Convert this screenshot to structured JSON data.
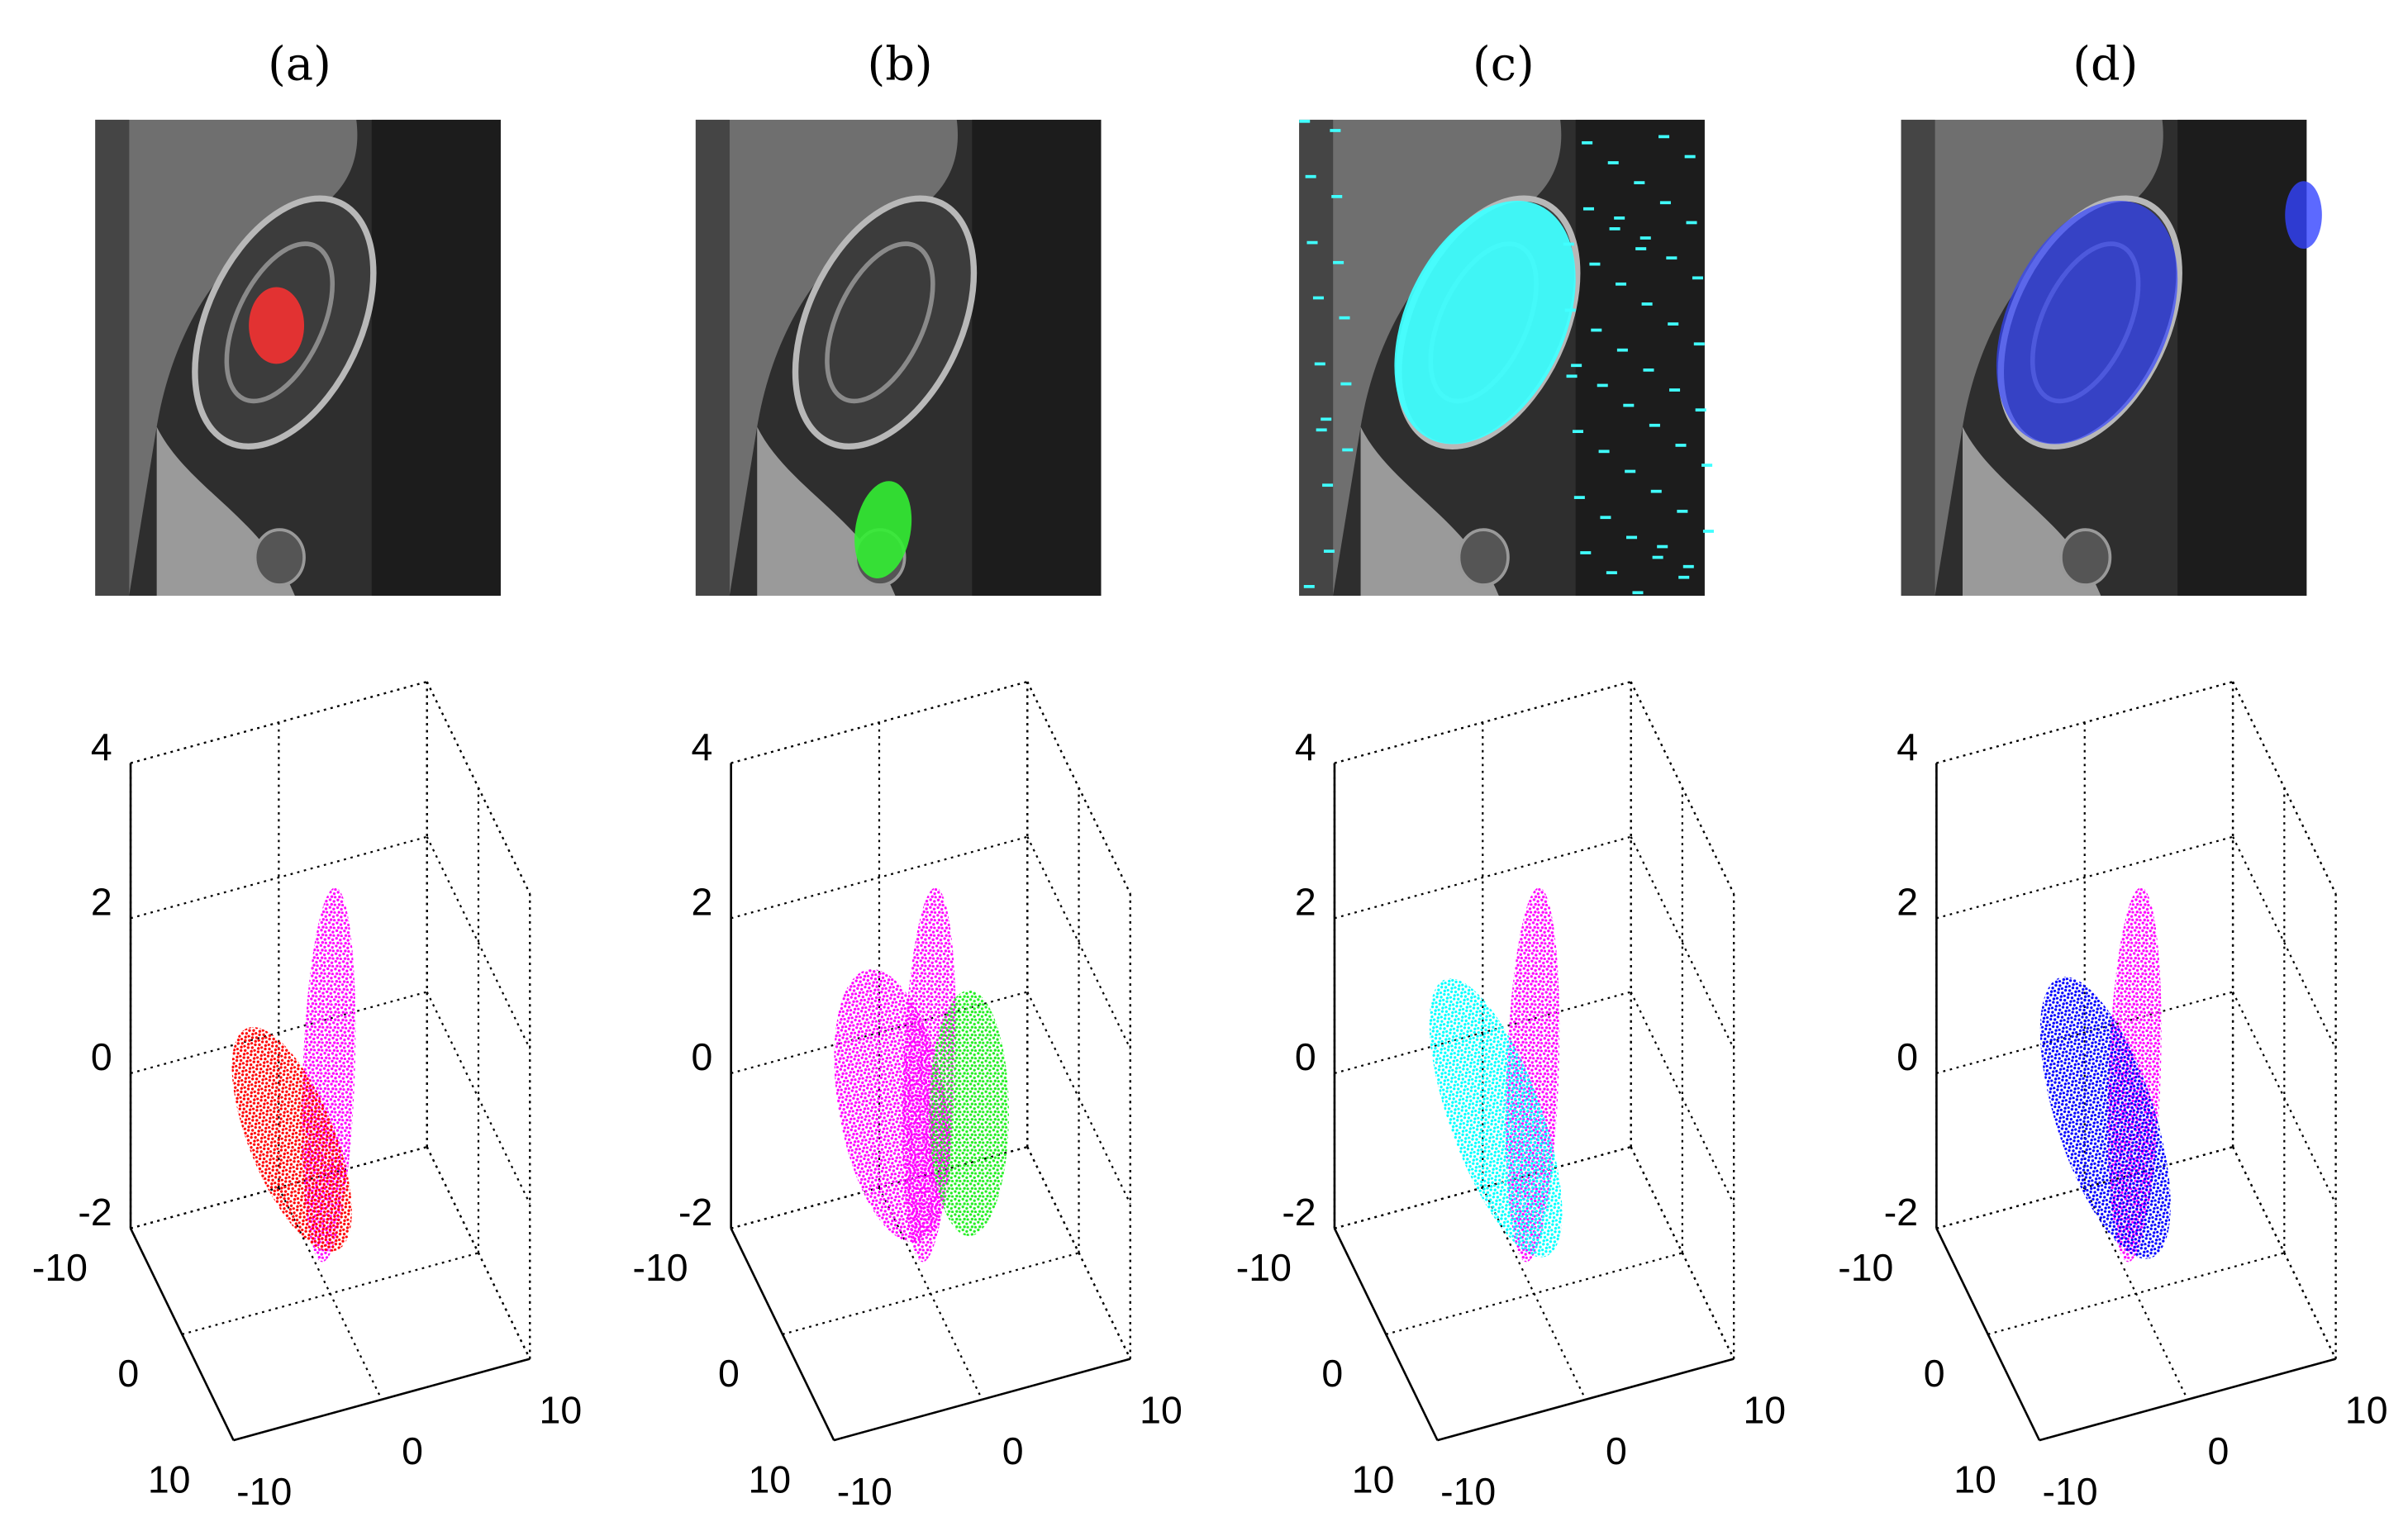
{
  "panels": [
    {
      "label": "(a)",
      "plot": {
        "xlim": [
          -10,
          10
        ],
        "ylim": [
          -10,
          10
        ],
        "zlim": [
          -2,
          4
        ],
        "zticks": [
          4,
          2,
          0,
          -2
        ],
        "xticks": [
          -10,
          0,
          10
        ],
        "yticks": [
          -10,
          0,
          10
        ]
      }
    },
    {
      "label": "(b)",
      "plot": {
        "xlim": [
          -10,
          10
        ],
        "ylim": [
          -10,
          10
        ],
        "zlim": [
          -2,
          4
        ],
        "zticks": [
          4,
          2,
          0,
          -2
        ],
        "xticks": [
          -10,
          0,
          10
        ],
        "yticks": [
          -10,
          0,
          10
        ]
      }
    },
    {
      "label": "(c)",
      "plot": {
        "xlim": [
          -10,
          10
        ],
        "ylim": [
          -10,
          10
        ],
        "zlim": [
          -2,
          4
        ],
        "zticks": [
          4,
          2,
          0,
          -2
        ],
        "xticks": [
          -10,
          0,
          10
        ],
        "yticks": [
          -10,
          0,
          10
        ]
      }
    },
    {
      "label": "(d)",
      "plot": {
        "xlim": [
          -10,
          10
        ],
        "ylim": [
          -10,
          10
        ],
        "zlim": [
          -2,
          4
        ],
        "zticks": [
          4,
          2,
          0,
          -2
        ],
        "xticks": [
          -10,
          0,
          10
        ],
        "yticks": [
          -10,
          0,
          10
        ]
      }
    }
  ]
}
